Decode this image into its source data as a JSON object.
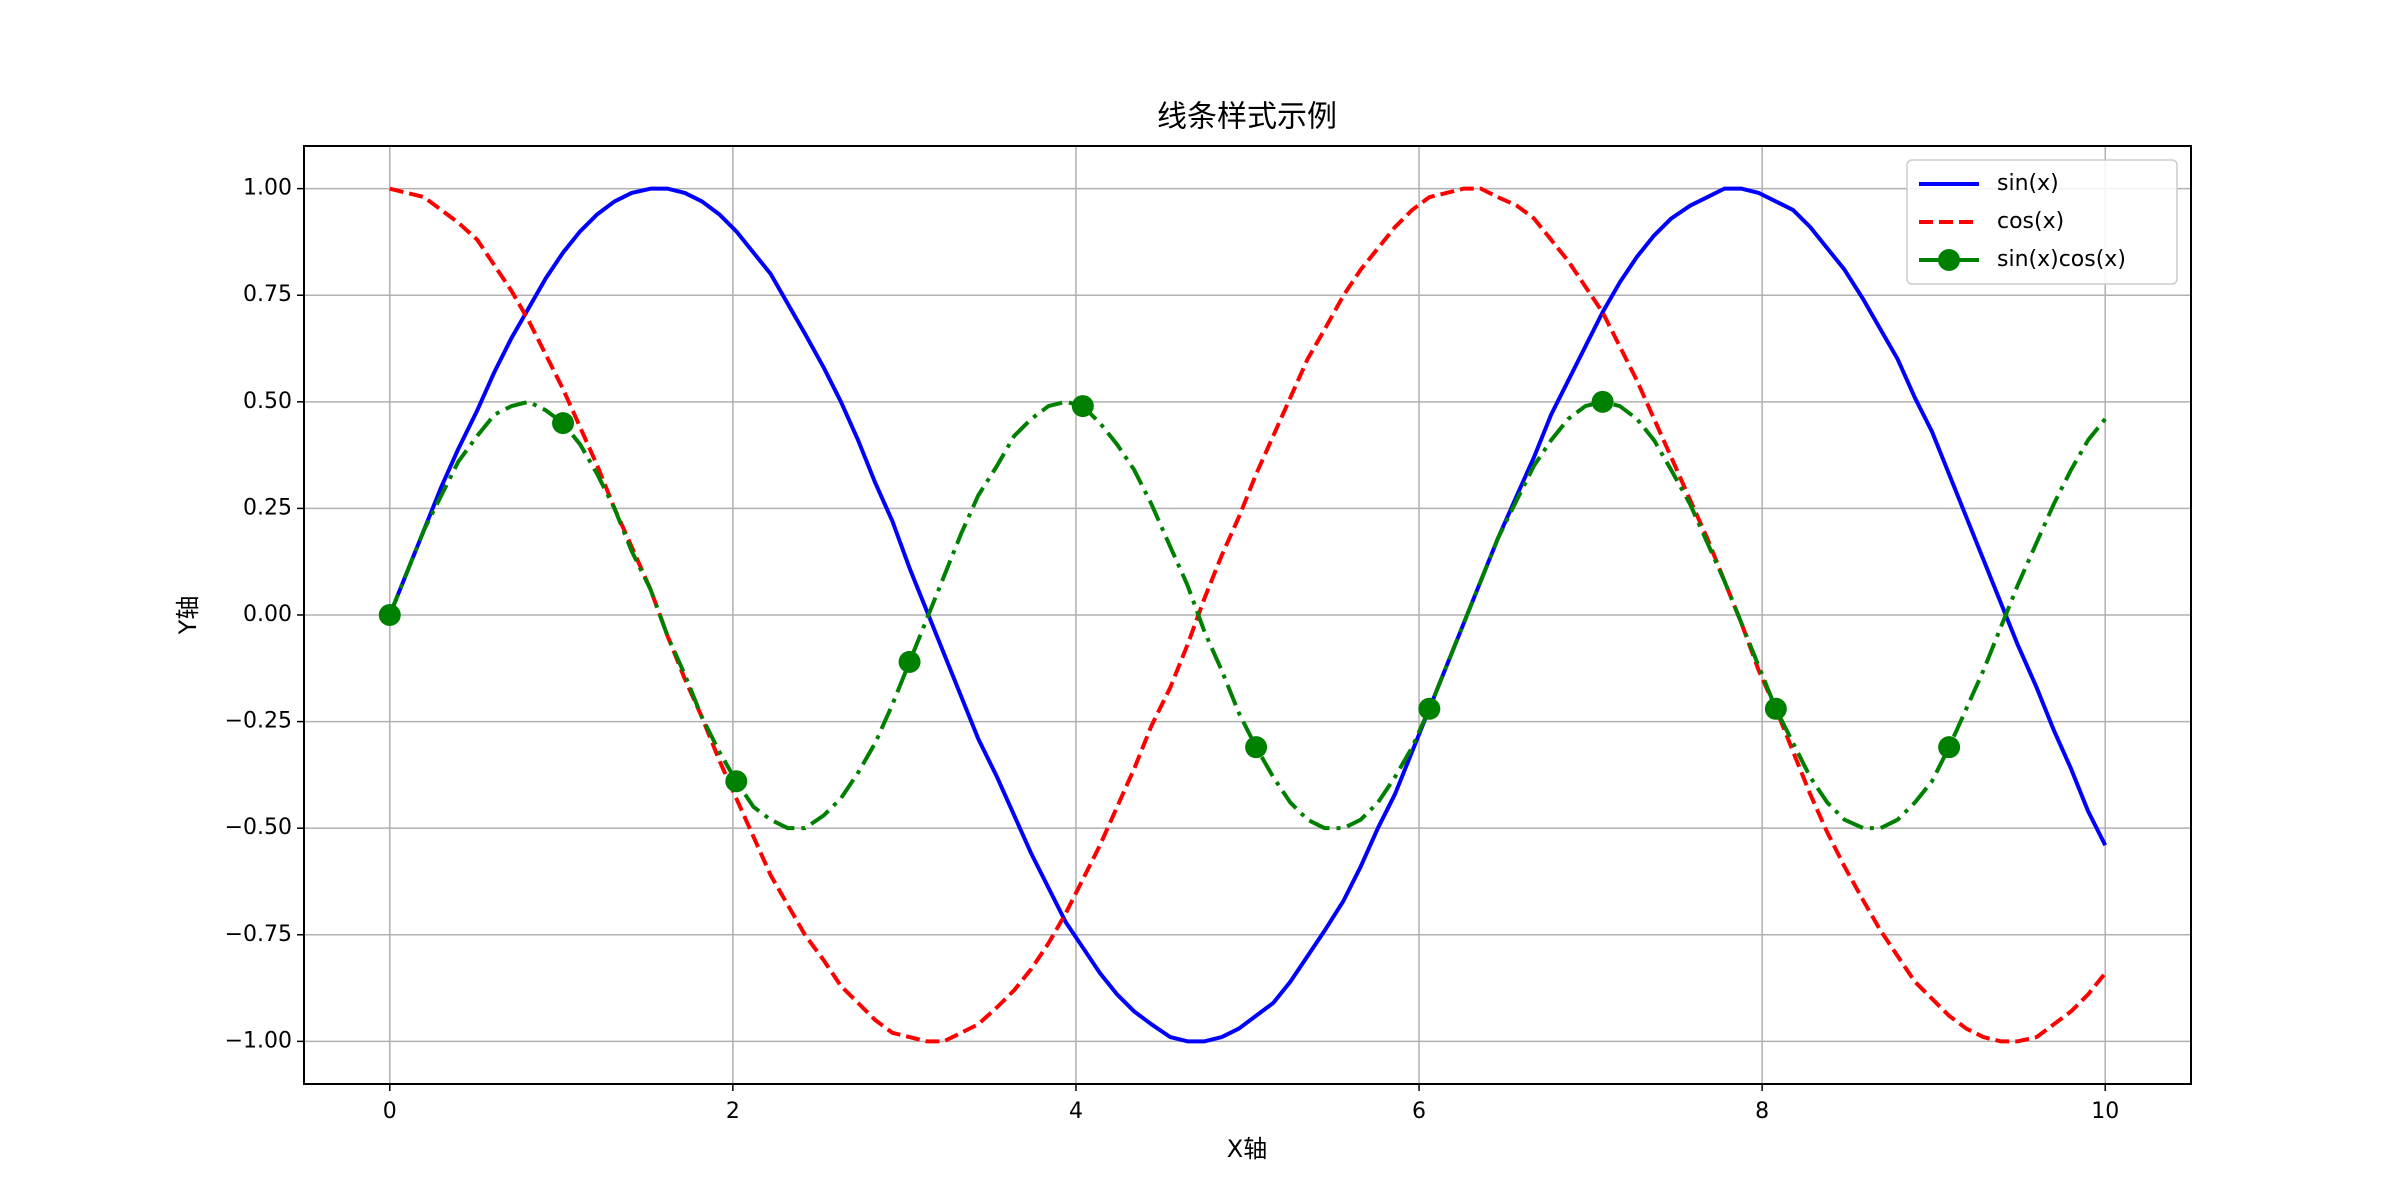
{
  "chart_data": {
    "type": "line",
    "title": "线条样式示例",
    "xlabel": "X轴",
    "ylabel": "Y轴",
    "x": [
      0,
      0.1,
      0.2,
      0.3,
      0.4,
      0.51,
      0.61,
      0.71,
      0.81,
      0.91,
      1.01,
      1.11,
      1.21,
      1.31,
      1.41,
      1.52,
      1.62,
      1.72,
      1.82,
      1.92,
      2.02,
      2.12,
      2.22,
      2.32,
      2.42,
      2.53,
      2.63,
      2.73,
      2.83,
      2.93,
      3.03,
      3.13,
      3.23,
      3.33,
      3.43,
      3.54,
      3.64,
      3.74,
      3.84,
      3.94,
      4.04,
      4.14,
      4.24,
      4.34,
      4.44,
      4.55,
      4.65,
      4.75,
      4.85,
      4.95,
      5.05,
      5.15,
      5.25,
      5.35,
      5.45,
      5.56,
      5.66,
      5.76,
      5.86,
      5.96,
      6.06,
      6.16,
      6.26,
      6.36,
      6.46,
      6.57,
      6.67,
      6.77,
      6.87,
      6.97,
      7.07,
      7.17,
      7.27,
      7.37,
      7.47,
      7.58,
      7.68,
      7.78,
      7.88,
      7.98,
      8.08,
      8.18,
      8.28,
      8.38,
      8.48,
      8.59,
      8.69,
      8.79,
      8.89,
      8.99,
      9.09,
      9.19,
      9.29,
      9.39,
      9.49,
      9.6,
      9.7,
      9.8,
      9.9,
      10
    ],
    "series": [
      {
        "name": "sin(x)",
        "color": "#0000ff",
        "linestyle": "solid",
        "values": [
          0,
          0.1,
          0.2,
          0.3,
          0.39,
          0.48,
          0.57,
          0.65,
          0.72,
          0.79,
          0.85,
          0.9,
          0.94,
          0.97,
          0.99,
          1.0,
          1.0,
          0.99,
          0.97,
          0.94,
          0.9,
          0.85,
          0.8,
          0.73,
          0.66,
          0.58,
          0.5,
          0.41,
          0.31,
          0.22,
          0.11,
          0.01,
          -0.09,
          -0.19,
          -0.29,
          -0.38,
          -0.47,
          -0.56,
          -0.64,
          -0.72,
          -0.78,
          -0.84,
          -0.89,
          -0.93,
          -0.96,
          -0.99,
          -1.0,
          -1.0,
          -0.99,
          -0.97,
          -0.94,
          -0.91,
          -0.86,
          -0.8,
          -0.74,
          -0.67,
          -0.59,
          -0.5,
          -0.42,
          -0.32,
          -0.22,
          -0.12,
          -0.02,
          0.08,
          0.18,
          0.28,
          0.37,
          0.47,
          0.55,
          0.63,
          0.71,
          0.78,
          0.84,
          0.89,
          0.93,
          0.96,
          0.98,
          1.0,
          1.0,
          0.99,
          0.97,
          0.95,
          0.91,
          0.86,
          0.81,
          0.74,
          0.67,
          0.6,
          0.51,
          0.43,
          0.33,
          0.23,
          0.13,
          0.03,
          -0.07,
          -0.17,
          -0.27,
          -0.36,
          -0.46,
          -0.54
        ]
      },
      {
        "name": "cos(x)",
        "color": "#ff0000",
        "linestyle": "dashed",
        "values": [
          1,
          0.99,
          0.98,
          0.95,
          0.92,
          0.88,
          0.82,
          0.76,
          0.69,
          0.61,
          0.53,
          0.44,
          0.35,
          0.25,
          0.16,
          0.06,
          -0.05,
          -0.15,
          -0.24,
          -0.34,
          -0.43,
          -0.52,
          -0.61,
          -0.68,
          -0.75,
          -0.81,
          -0.87,
          -0.91,
          -0.95,
          -0.98,
          -0.99,
          -1.0,
          -1.0,
          -0.98,
          -0.96,
          -0.92,
          -0.88,
          -0.83,
          -0.77,
          -0.7,
          -0.62,
          -0.54,
          -0.45,
          -0.36,
          -0.26,
          -0.17,
          -0.07,
          0.04,
          0.14,
          0.23,
          0.33,
          0.42,
          0.51,
          0.6,
          0.67,
          0.75,
          0.81,
          0.86,
          0.91,
          0.95,
          0.98,
          0.99,
          1.0,
          1.0,
          0.98,
          0.96,
          0.93,
          0.88,
          0.83,
          0.77,
          0.71,
          0.63,
          0.55,
          0.46,
          0.37,
          0.27,
          0.18,
          0.08,
          -0.02,
          -0.13,
          -0.22,
          -0.32,
          -0.42,
          -0.51,
          -0.59,
          -0.67,
          -0.74,
          -0.8,
          -0.86,
          -0.9,
          -0.94,
          -0.97,
          -0.99,
          -1.0,
          -1.0,
          -0.99,
          -0.96,
          -0.93,
          -0.89,
          -0.84
        ]
      },
      {
        "name": "sin(x)cos(x)",
        "color": "#008000",
        "linestyle": "dashdot",
        "marker": "o",
        "markevery": 10,
        "values": [
          0,
          0.1,
          0.2,
          0.28,
          0.36,
          0.42,
          0.47,
          0.49,
          0.5,
          0.48,
          0.45,
          0.4,
          0.33,
          0.25,
          0.15,
          0.06,
          -0.05,
          -0.14,
          -0.24,
          -0.32,
          -0.39,
          -0.45,
          -0.48,
          -0.5,
          -0.5,
          -0.47,
          -0.43,
          -0.37,
          -0.3,
          -0.21,
          -0.11,
          -0.01,
          0.09,
          0.19,
          0.28,
          0.35,
          0.42,
          0.46,
          0.49,
          0.5,
          0.49,
          0.45,
          0.4,
          0.34,
          0.26,
          0.16,
          0.07,
          -0.04,
          -0.13,
          -0.23,
          -0.31,
          -0.38,
          -0.44,
          -0.48,
          -0.5,
          -0.5,
          -0.48,
          -0.44,
          -0.38,
          -0.31,
          -0.22,
          -0.12,
          -0.02,
          0.08,
          0.18,
          0.27,
          0.35,
          0.41,
          0.46,
          0.49,
          0.5,
          0.49,
          0.46,
          0.41,
          0.34,
          0.26,
          0.17,
          0.08,
          -0.02,
          -0.12,
          -0.22,
          -0.3,
          -0.38,
          -0.44,
          -0.48,
          -0.5,
          -0.5,
          -0.48,
          -0.44,
          -0.39,
          -0.31,
          -0.22,
          -0.13,
          -0.03,
          0.07,
          0.17,
          0.26,
          0.34,
          0.41,
          0.46
        ]
      }
    ],
    "xlim": [
      -0.5,
      10.5
    ],
    "ylim": [
      -1.1,
      1.1
    ],
    "xticks": [
      0,
      2,
      4,
      6,
      8,
      10
    ],
    "yticks": [
      {
        "value": -1,
        "label": "−1.00"
      },
      {
        "value": -0.75,
        "label": "−0.75"
      },
      {
        "value": -0.5,
        "label": "−0.50"
      },
      {
        "value": -0.25,
        "label": "−0.25"
      },
      {
        "value": 0,
        "label": "0.00"
      },
      {
        "value": 0.25,
        "label": "0.25"
      },
      {
        "value": 0.5,
        "label": "0.50"
      },
      {
        "value": 0.75,
        "label": "0.75"
      },
      {
        "value": 1,
        "label": "1.00"
      }
    ],
    "grid": true,
    "legend": "upper right"
  }
}
